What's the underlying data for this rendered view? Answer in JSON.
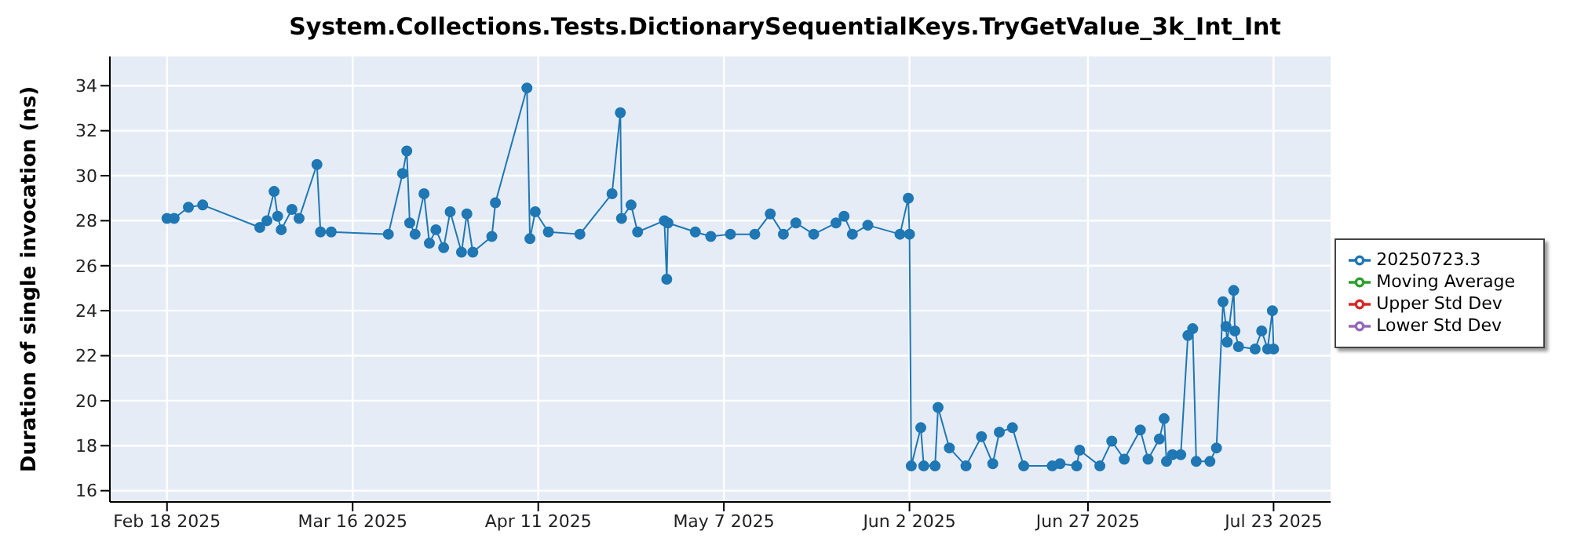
{
  "chart_data": {
    "type": "line",
    "title": "System.Collections.Tests.DictionarySequentialKeys.TryGetValue_3k_Int_Int",
    "ylabel": "Duration of single invocation (ns)",
    "x": [
      "2025-02-18",
      "2025-02-19",
      "2025-02-21",
      "2025-02-23",
      "2025-03-03",
      "2025-03-04",
      "2025-03-05",
      "2025-03-05T12:00",
      "2025-03-06",
      "2025-03-07T12:00",
      "2025-03-08T12:00",
      "2025-03-11",
      "2025-03-11T12:00",
      "2025-03-13",
      "2025-03-21",
      "2025-03-23",
      "2025-03-23T14:00",
      "2025-03-24",
      "2025-03-24T18:00",
      "2025-03-26",
      "2025-03-26T18:00",
      "2025-03-27T16:00",
      "2025-03-28T18:00",
      "2025-03-29T16:00",
      "2025-03-31T06:00",
      "2025-04-01",
      "2025-04-01T20:00",
      "2025-04-04T12:00",
      "2025-04-05",
      "2025-04-09T10:00",
      "2025-04-09T20:00",
      "2025-04-10T14:00",
      "2025-04-12T10:00",
      "2025-04-16T20:00",
      "2025-04-21T08:00",
      "2025-04-22T12:00",
      "2025-04-22T16:00",
      "2025-04-24",
      "2025-04-24T22:00",
      "2025-04-28T16:00",
      "2025-04-29",
      "2025-04-29T04:00",
      "2025-05-03",
      "2025-05-05T04:00",
      "2025-05-07T22:00",
      "2025-05-11T08:00",
      "2025-05-13T12:00",
      "2025-05-15T08:00",
      "2025-05-17T02:00",
      "2025-05-19T14:00",
      "2025-05-22T17:00",
      "2025-05-23T20:00",
      "2025-05-25",
      "2025-05-27T04:00",
      "2025-05-31T16:00",
      "2025-06-01T20:00",
      "2025-06-02",
      "2025-06-02T06:00",
      "2025-06-03T14:00",
      "2025-06-04",
      "2025-06-05T14:00",
      "2025-06-06",
      "2025-06-07T14:00",
      "2025-06-09T22:00",
      "2025-06-12T02:00",
      "2025-06-13T16:00",
      "2025-06-14T14:00",
      "2025-06-16T10:00",
      "2025-06-18",
      "2025-06-22",
      "2025-06-23T02:00",
      "2025-06-25T10:00",
      "2025-06-25T20:00",
      "2025-06-28T16:00",
      "2025-06-30T08:00",
      "2025-07-02T02:00",
      "2025-07-04T08:00",
      "2025-07-05T10:00",
      "2025-07-07",
      "2025-07-07T16:00",
      "2025-07-08",
      "2025-07-08T20:00",
      "2025-07-10",
      "2025-07-11",
      "2025-07-11T16:00",
      "2025-07-12T04:00",
      "2025-07-14T02:00",
      "2025-07-15",
      "2025-07-15T22:00",
      "2025-07-16T08:00",
      "2025-07-16T12:00",
      "2025-07-17T10:00",
      "2025-07-17T14:00",
      "2025-07-18T02:00",
      "2025-07-20T10:00",
      "2025-07-21T08:00",
      "2025-07-22T04:00",
      "2025-07-22T20:00",
      "2025-07-23"
    ],
    "series": [
      {
        "name": "20250723.3",
        "color": "#1f77b4",
        "values": [
          28.1,
          28.1,
          28.6,
          28.7,
          27.7,
          28.0,
          29.3,
          28.2,
          27.6,
          28.5,
          28.1,
          30.5,
          27.5,
          27.5,
          27.4,
          30.1,
          31.1,
          27.9,
          27.4,
          29.2,
          27.0,
          27.6,
          26.8,
          28.4,
          26.6,
          28.3,
          26.6,
          27.3,
          28.8,
          33.9,
          27.2,
          28.4,
          27.5,
          27.4,
          29.2,
          32.8,
          28.1,
          28.7,
          27.5,
          28.0,
          25.4,
          27.9,
          27.5,
          27.3,
          27.4,
          27.4,
          28.3,
          27.4,
          27.9,
          27.4,
          27.9,
          28.2,
          27.4,
          27.8,
          27.4,
          29.0,
          27.4,
          17.1,
          18.8,
          17.1,
          17.1,
          19.7,
          17.9,
          17.1,
          18.4,
          17.2,
          18.6,
          18.8,
          17.1,
          17.1,
          17.2,
          17.1,
          17.8,
          17.1,
          18.2,
          17.4,
          18.7,
          17.4,
          18.3,
          19.2,
          17.3,
          17.6,
          17.6,
          22.9,
          23.2,
          17.3,
          17.3,
          17.9,
          24.4,
          23.3,
          22.6,
          24.9,
          23.1,
          22.4,
          22.3,
          23.1,
          22.3,
          24.0,
          22.3
        ]
      },
      {
        "name": "Moving Average",
        "color": "#2ca02c",
        "values": [
          null,
          null,
          null,
          null,
          null,
          null,
          null,
          null,
          null,
          null,
          null,
          null,
          null,
          null,
          null,
          null,
          null,
          null,
          null,
          null,
          null,
          null,
          null,
          null,
          null,
          null,
          null,
          null,
          null,
          null,
          null,
          null,
          null,
          null,
          null,
          null,
          null,
          null,
          null,
          null,
          null,
          null,
          null,
          null,
          null,
          null,
          null,
          null,
          null,
          null,
          null,
          null,
          null,
          null,
          null,
          null,
          null,
          null,
          null,
          null,
          null,
          null,
          null,
          null,
          null,
          null,
          null,
          null,
          null,
          null,
          null,
          null,
          null,
          null,
          null,
          null,
          null,
          null,
          null,
          null,
          null,
          null,
          null,
          null,
          null,
          null,
          null,
          null,
          null,
          null,
          null,
          null,
          null,
          null,
          null,
          null,
          null,
          null,
          null
        ]
      },
      {
        "name": "Upper Std Dev",
        "color": "#d62728",
        "values": [
          null,
          null,
          null,
          null,
          null,
          null,
          null,
          null,
          null,
          null,
          null,
          null,
          null,
          null,
          null,
          null,
          null,
          null,
          null,
          null,
          null,
          null,
          null,
          null,
          null,
          null,
          null,
          null,
          null,
          null,
          null,
          null,
          null,
          null,
          null,
          null,
          null,
          null,
          null,
          null,
          null,
          null,
          null,
          null,
          null,
          null,
          null,
          null,
          null,
          null,
          null,
          null,
          null,
          null,
          null,
          null,
          null,
          null,
          null,
          null,
          null,
          null,
          null,
          null,
          null,
          null,
          null,
          null,
          null,
          null,
          null,
          null,
          null,
          null,
          null,
          null,
          null,
          null,
          null,
          null,
          null,
          null,
          null,
          null,
          null,
          null,
          null,
          null,
          null,
          null,
          null,
          null,
          null,
          null,
          null,
          null,
          null,
          null,
          null
        ]
      },
      {
        "name": "Lower Std Dev",
        "color": "#9467bd",
        "values": [
          null,
          null,
          null,
          null,
          null,
          null,
          null,
          null,
          null,
          null,
          null,
          null,
          null,
          null,
          null,
          null,
          null,
          null,
          null,
          null,
          null,
          null,
          null,
          null,
          null,
          null,
          null,
          null,
          null,
          null,
          null,
          null,
          null,
          null,
          null,
          null,
          null,
          null,
          null,
          null,
          null,
          null,
          null,
          null,
          null,
          null,
          null,
          null,
          null,
          null,
          null,
          null,
          null,
          null,
          null,
          null,
          null,
          null,
          null,
          null,
          null,
          null,
          null,
          null,
          null,
          null,
          null,
          null,
          null,
          null,
          null,
          null,
          null,
          null,
          null,
          null,
          null,
          null,
          null,
          null,
          null,
          null,
          null,
          null,
          null,
          null,
          null,
          null,
          null,
          null,
          null,
          null,
          null,
          null,
          null,
          null,
          null,
          null,
          null
        ]
      }
    ],
    "xlim": [
      "2025-02-10",
      "2025-07-31"
    ],
    "xticks": [
      {
        "value": "2025-02-18",
        "label": "Feb 18 2025"
      },
      {
        "value": "2025-03-16",
        "label": "Mar 16 2025"
      },
      {
        "value": "2025-04-11",
        "label": "Apr 11 2025"
      },
      {
        "value": "2025-05-07",
        "label": "May 7 2025"
      },
      {
        "value": "2025-06-02",
        "label": "Jun 2 2025"
      },
      {
        "value": "2025-06-27",
        "label": "Jun 27 2025"
      },
      {
        "value": "2025-07-23",
        "label": "Jul 23 2025"
      }
    ],
    "ylim": [
      15.5,
      35.3
    ],
    "yticks": [
      16,
      18,
      20,
      22,
      24,
      26,
      28,
      30,
      32,
      34
    ],
    "grid": true,
    "legend": "right",
    "marker": "circle",
    "line_style": "solid"
  }
}
